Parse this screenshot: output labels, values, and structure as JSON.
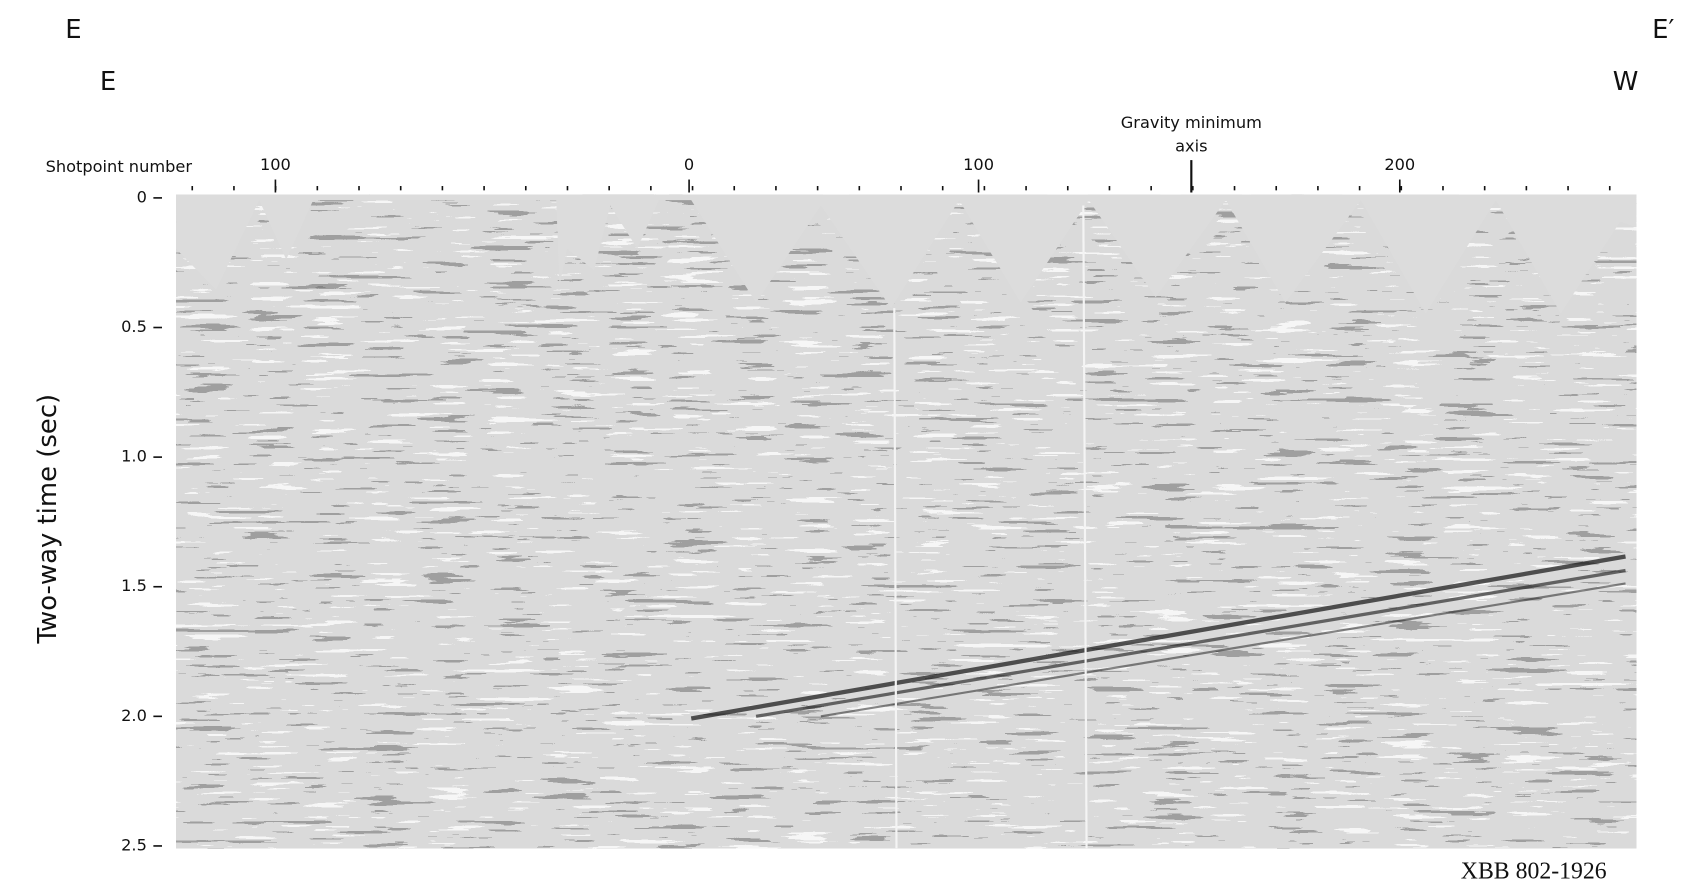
{
  "header": {
    "left_top": "E",
    "right_top": "E′",
    "left": "E",
    "right": "W"
  },
  "annotation": {
    "line1": "Gravity minimum",
    "line2": "axis"
  },
  "x_axis": {
    "title": "Shotpoint number",
    "labels": [
      "100",
      "0",
      "100",
      "200"
    ]
  },
  "y_axis": {
    "title": "Two-way time (sec)",
    "labels": [
      "0",
      "0.5",
      "1.0",
      "1.5",
      "2.0",
      "2.5"
    ]
  },
  "footer": {
    "code": "XBB 802-1926"
  }
}
